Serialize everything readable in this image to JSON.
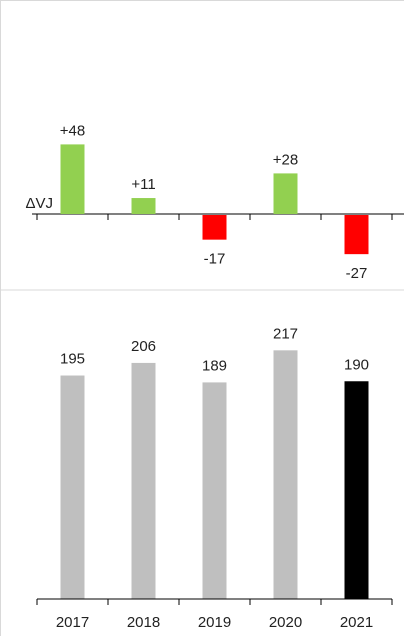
{
  "chart_data": [
    {
      "type": "bar",
      "variant": "delta",
      "axis_label": "ΔVJ",
      "categories": [
        "2017",
        "2018",
        "2019",
        "2020",
        "2021"
      ],
      "values": [
        48,
        11,
        -17,
        28,
        -27
      ],
      "value_labels": [
        "+48",
        "+11",
        "-17",
        "+28",
        "-27"
      ],
      "colors": {
        "positive": "#92d050",
        "negative": "#ff0000"
      }
    },
    {
      "type": "bar",
      "categories": [
        "2017",
        "2018",
        "2019",
        "2020",
        "2021"
      ],
      "values": [
        195,
        206,
        189,
        217,
        190
      ],
      "value_labels": [
        "195",
        "206",
        "189",
        "217",
        "190"
      ],
      "colors": {
        "default": "#bfbfbf",
        "highlight": "#000000"
      },
      "highlight_index": 4
    }
  ]
}
